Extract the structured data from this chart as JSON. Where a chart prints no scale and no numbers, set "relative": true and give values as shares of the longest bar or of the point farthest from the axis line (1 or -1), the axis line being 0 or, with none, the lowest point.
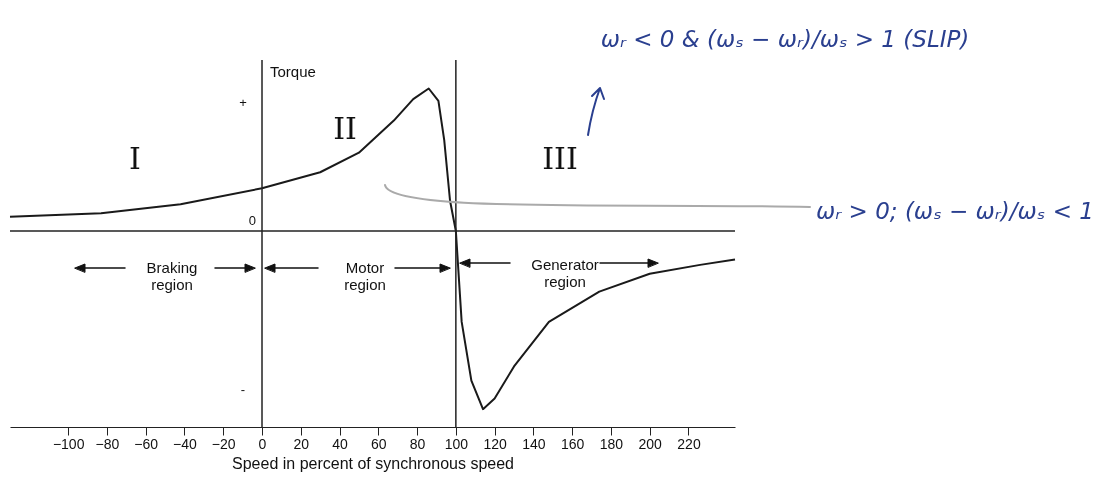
{
  "chart_data": {
    "type": "line",
    "relative": true,
    "xlabel": "Speed in percent of synchronous speed",
    "ylabel": "Torque",
    "x": [
      -130,
      -83,
      -42,
      0,
      30,
      50,
      68,
      78,
      86,
      91,
      94,
      97,
      100,
      103,
      108,
      114,
      120,
      130,
      148,
      174,
      200,
      226,
      244
    ],
    "series": [
      {
        "color": "#1a1a1a",
        "values": [
          0.08,
          0.1,
          0.15,
          0.24,
          0.33,
          0.44,
          0.62,
          0.74,
          0.8,
          0.73,
          0.51,
          0.17,
          0,
          -0.51,
          -0.84,
          -1,
          -0.94,
          -0.76,
          -0.51,
          -0.34,
          -0.24,
          -0.19,
          -0.16
        ]
      }
    ],
    "xlim": [
      -130,
      244
    ],
    "xticks": [
      -100,
      -80,
      -60,
      -40,
      -20,
      0,
      20,
      40,
      60,
      80,
      100,
      120,
      140,
      160,
      180,
      200,
      220
    ],
    "grid": false,
    "line_style": "solid",
    "ref_lines": [
      {
        "axis": "y",
        "value": 0,
        "label": "0"
      },
      {
        "axis": "x",
        "value": 0
      },
      {
        "axis": "x",
        "value": 100
      }
    ],
    "annotations": [
      "+",
      "-",
      "I",
      "II",
      "III",
      "Braking\nregion",
      "Motor\nregion",
      "Generator\nregion",
      "ωᵣ < 0 & (ωₛ − ωᵣ)/ωₛ > 1 (SLIP)",
      "ωᵣ > 0; (ωₛ − ωᵣ)/ωₛ < 1"
    ]
  }
}
